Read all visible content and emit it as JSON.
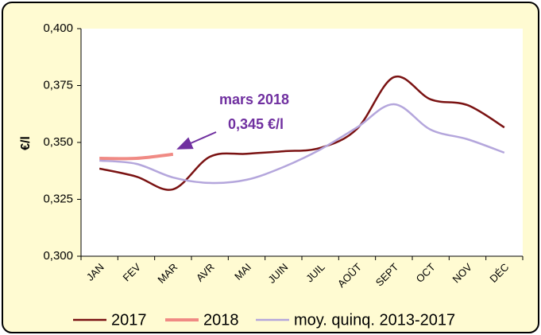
{
  "chart_data": {
    "type": "line",
    "y_label": "€/l",
    "categories": [
      "JAN",
      "FEV",
      "MAR",
      "AVR",
      "MAI",
      "JUIN",
      "JUIL",
      "AOÛT",
      "SEPT",
      "OCT",
      "NOV",
      "DÉC"
    ],
    "series": [
      {
        "name": "2017",
        "color": "#7a1212",
        "values": [
          0.3385,
          0.335,
          0.3294,
          0.3437,
          0.345,
          0.3461,
          0.3476,
          0.356,
          0.3787,
          0.3689,
          0.3664,
          0.3566
        ]
      },
      {
        "name": "2018",
        "color": "#f08a84",
        "values": [
          0.343,
          0.343,
          0.3448,
          null,
          null,
          null,
          null,
          null,
          null,
          null,
          null,
          null
        ]
      },
      {
        "name": "moy. quinq. 2013-2017",
        "color": "#b4a6dc",
        "values": [
          0.342,
          0.3406,
          0.3346,
          0.3322,
          0.3336,
          0.3392,
          0.3469,
          0.3566,
          0.3668,
          0.3556,
          0.3514,
          0.3455
        ]
      }
    ],
    "ylim": [
      0.3,
      0.4
    ],
    "yticks": [
      {
        "value": 0.3,
        "label": "0,300"
      },
      {
        "value": 0.325,
        "label": "0,325"
      },
      {
        "value": 0.35,
        "label": "0,350"
      },
      {
        "value": 0.375,
        "label": "0,375"
      },
      {
        "value": 0.4,
        "label": "0,400"
      }
    ],
    "annotation": [
      "mars 2018",
      "0,345 €/l"
    ],
    "legend": "bottom"
  }
}
